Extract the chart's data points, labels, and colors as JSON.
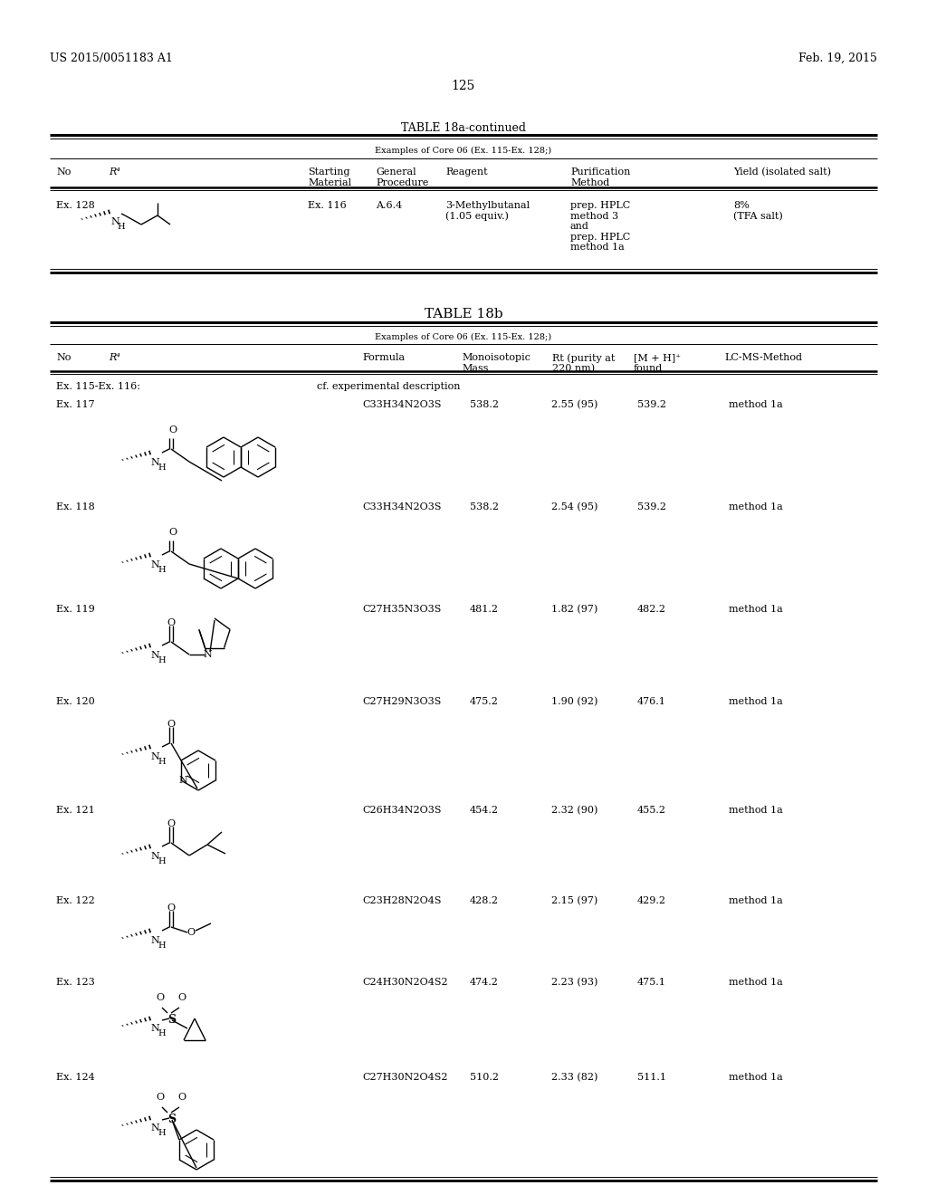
{
  "bg_color": "#ffffff",
  "header_left": "US 2015/0051183 A1",
  "header_right": "Feb. 19, 2015",
  "page_number": "125",
  "table18a_title": "TABLE 18a-continued",
  "table18a_subtitle": "Examples of Core 06 (Ex. 115-Ex. 128;)",
  "table18b_title": "TABLE 18b",
  "table18b_subtitle": "Examples of Core 06 (Ex. 115-Ex. 128;)",
  "table18b_rows": [
    {
      "no": "Ex. 115-Ex. 116:",
      "formula": "",
      "mass": "",
      "rt": "cf. experimental description",
      "mh": "",
      "method": ""
    },
    {
      "no": "Ex. 117",
      "formula": "C33H34N2O3S",
      "mass": "538.2",
      "rt": "2.55 (95)",
      "mh": "539.2",
      "method": "method 1a"
    },
    {
      "no": "Ex. 118",
      "formula": "C33H34N2O3S",
      "mass": "538.2",
      "rt": "2.54 (95)",
      "mh": "539.2",
      "method": "method 1a"
    },
    {
      "no": "Ex. 119",
      "formula": "C27H35N3O3S",
      "mass": "481.2",
      "rt": "1.82 (97)",
      "mh": "482.2",
      "method": "method 1a"
    },
    {
      "no": "Ex. 120",
      "formula": "C27H29N3O3S",
      "mass": "475.2",
      "rt": "1.90 (92)",
      "mh": "476.1",
      "method": "method 1a"
    },
    {
      "no": "Ex. 121",
      "formula": "C26H34N2O3S",
      "mass": "454.2",
      "rt": "2.32 (90)",
      "mh": "455.2",
      "method": "method 1a"
    },
    {
      "no": "Ex. 122",
      "formula": "C23H28N2O4S",
      "mass": "428.2",
      "rt": "2.15 (97)",
      "mh": "429.2",
      "method": "method 1a"
    },
    {
      "no": "Ex. 123",
      "formula": "C24H30N2O4S2",
      "mass": "474.2",
      "rt": "2.23 (93)",
      "mh": "475.1",
      "method": "method 1a"
    },
    {
      "no": "Ex. 124",
      "formula": "C27H30N2O4S2",
      "mass": "510.2",
      "rt": "2.33 (82)",
      "mh": "511.1",
      "method": "method 1a"
    }
  ],
  "fs_hdr": 9,
  "fs_body": 8,
  "fs_title": 9,
  "fs_page": 10,
  "fs_small": 7.5
}
